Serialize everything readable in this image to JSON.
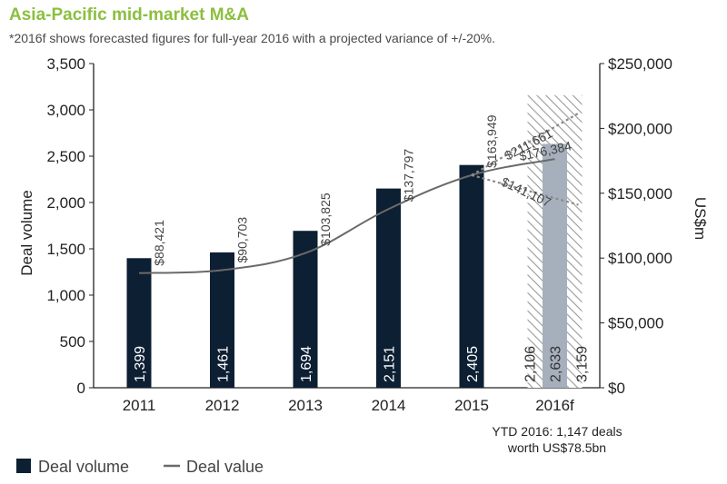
{
  "title": "Asia-Pacific mid-market M&A",
  "subtitle": "*2016f shows forecasted figures for full-year 2016 with a projected variance of +/-20%.",
  "colors": {
    "title": "#8cbf3f",
    "bar": "#0d1f33",
    "forecast_bar": "#a6b0bd",
    "line": "#6a6a6a",
    "dotted": "#8a8a8a",
    "hatch": "#9a9a9a"
  },
  "chart_data": {
    "type": "bar",
    "categories": [
      "2011",
      "2012",
      "2013",
      "2014",
      "2015",
      "2016f"
    ],
    "ylabel": "Deal volume",
    "y2label": "US$m",
    "ylim": [
      0,
      3500
    ],
    "y2lim": [
      0,
      250000
    ],
    "yticks": [
      "0",
      "500",
      "1,000",
      "1,500",
      "2,000",
      "2,500",
      "3,000",
      "3,500"
    ],
    "y2ticks": [
      "$0",
      "$50,000",
      "$100,000",
      "$150,000",
      "$200,000",
      "$250,000"
    ],
    "series": [
      {
        "name": "Deal volume",
        "type": "bar",
        "values": [
          1399,
          1461,
          1694,
          2151,
          2405,
          2633
        ],
        "labels": [
          "1,399",
          "1,461",
          "1,694",
          "2,151",
          "2,405",
          "2,633"
        ]
      },
      {
        "name": "Deal value",
        "type": "line",
        "axis": "right",
        "values": [
          88421,
          90703,
          103825,
          137797,
          163949,
          176384
        ],
        "labels": [
          "$88,421",
          "$90,703",
          "$103,825",
          "$137,797",
          "$163,949",
          "$176,384"
        ]
      }
    ],
    "forecast_range": {
      "category": "2016f",
      "volume_low": 2106,
      "volume_high": 3159,
      "volume_low_label": "2,106",
      "volume_high_label": "3,159",
      "value_low": 141107,
      "value_high": 211661,
      "value_low_label": "$141,107",
      "value_high_label": "$211,661"
    },
    "annotation": [
      "YTD 2016: 1,147 deals",
      "worth US$78.5bn"
    ],
    "legend": {
      "position": "bottom-left",
      "items": [
        {
          "label": "Deal volume",
          "kind": "box"
        },
        {
          "label": "Deal value",
          "kind": "line"
        }
      ]
    },
    "grid": false
  }
}
